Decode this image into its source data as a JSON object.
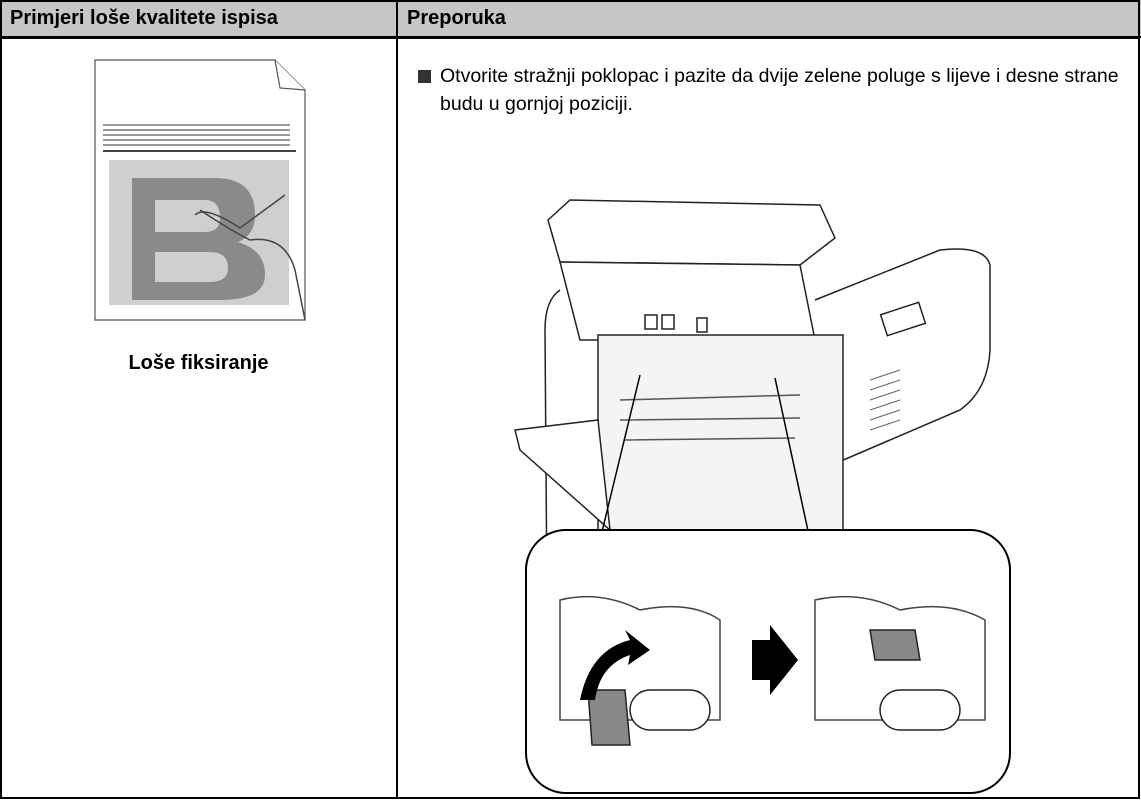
{
  "table": {
    "headers": [
      "Primjeri loše kvalitete ispisa",
      "Preporuka"
    ],
    "rows": [
      [
        {
          "caption": "Loše fiksiranje"
        },
        {
          "text": "Otvorite stražnji poklopac i pazite da dvije zelene poluge s lijeve i desne strane budu u gornjoj poziciji."
        }
      ]
    ]
  }
}
